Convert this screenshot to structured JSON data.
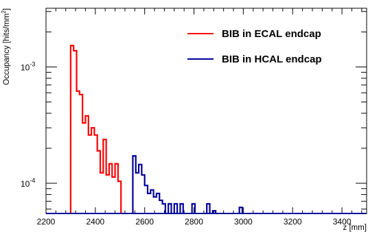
{
  "chart_data": {
    "type": "histogram",
    "title": "",
    "xlabel": "z [mm]",
    "ylabel_main": "Occupancy [hits/mm",
    "ylabel_sup": "2",
    "ylabel_close": "]",
    "xlim": [
      2200,
      3500
    ],
    "ylim": [
      5.5e-05,
      0.0032
    ],
    "yscale": "log",
    "bin_width": 12,
    "x_ticks": [
      2200,
      2400,
      2600,
      2800,
      3000,
      3200,
      3400
    ],
    "x_tick_labels": [
      "2200",
      "2400",
      "2600",
      "2800",
      "3000",
      "3200",
      "3400"
    ],
    "x_minor_step": 40,
    "y_major_ticks": [
      0.0001,
      0.001
    ],
    "y_tick_labels": [
      {
        "base": "10",
        "exp": "-4"
      },
      {
        "base": "10",
        "exp": "-3"
      }
    ],
    "grid": false,
    "legend_position": "top-right",
    "series": [
      {
        "name": "BIB in ECAL endcap",
        "color": "#ff0000",
        "bins": [
          {
            "x0": 2300,
            "y": 0.00153
          },
          {
            "x0": 2312,
            "y": 0.00138
          },
          {
            "x0": 2324,
            "y": 0.00062
          },
          {
            "x0": 2336,
            "y": 0.00058
          },
          {
            "x0": 2348,
            "y": 0.00033
          },
          {
            "x0": 2360,
            "y": 0.00038
          },
          {
            "x0": 2372,
            "y": 0.00026
          },
          {
            "x0": 2384,
            "y": 0.0003
          },
          {
            "x0": 2396,
            "y": 0.00026
          },
          {
            "x0": 2408,
            "y": 0.00019
          },
          {
            "x0": 2420,
            "y": 0.000123
          },
          {
            "x0": 2432,
            "y": 0.000238
          },
          {
            "x0": 2444,
            "y": 0.000118
          },
          {
            "x0": 2456,
            "y": 0.000147
          },
          {
            "x0": 2468,
            "y": 0.000113
          },
          {
            "x0": 2480,
            "y": 0.000147
          },
          {
            "x0": 2492,
            "y": 0.000104
          }
        ]
      },
      {
        "name": "BIB in HCAL endcap",
        "color": "#000099",
        "bins": [
          {
            "x0": 2552,
            "y": 0.000172
          },
          {
            "x0": 2564,
            "y": 0.000123
          },
          {
            "x0": 2576,
            "y": 0.000145
          },
          {
            "x0": 2588,
            "y": 0.000118
          },
          {
            "x0": 2600,
            "y": 9.58e-05
          },
          {
            "x0": 2612,
            "y": 8.18e-05
          },
          {
            "x0": 2624,
            "y": 8.77e-05
          },
          {
            "x0": 2636,
            "y": 7.63e-05
          },
          {
            "x0": 2648,
            "y": 8.18e-05
          },
          {
            "x0": 2660,
            "y": 7.13e-05
          },
          {
            "x0": 2672,
            "y": 6.65e-05
          },
          {
            "x0": 2696,
            "y": 6.65e-05
          },
          {
            "x0": 2720,
            "y": 6.65e-05
          },
          {
            "x0": 2744,
            "y": 6.65e-05
          },
          {
            "x0": 2792,
            "y": 6.65e-05
          },
          {
            "x0": 2852,
            "y": 6.65e-05
          },
          {
            "x0": 2876,
            "y": 5.8e-05
          },
          {
            "x0": 2984,
            "y": 6.2e-05
          }
        ]
      }
    ]
  }
}
